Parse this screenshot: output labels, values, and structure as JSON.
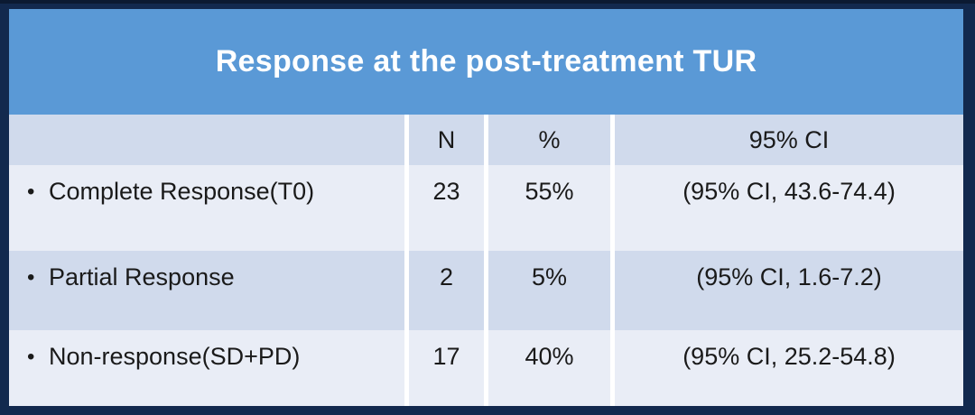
{
  "chart_data": {
    "type": "table",
    "title": "Response at the post-treatment TUR",
    "columns": [
      "",
      "N",
      "%",
      "95% CI"
    ],
    "rows": [
      [
        "Complete Response(T0)",
        "23",
        "55%",
        "(95% CI, 43.6-74.4)"
      ],
      [
        "Partial Response",
        "2",
        "5%",
        "(95% CI, 1.6-7.2)"
      ],
      [
        "Non-response(SD+PD)",
        "17",
        "40%",
        "(95% CI, 25.2-54.8)"
      ]
    ],
    "layout_hints": {
      "row_banding": [
        "light",
        "dark",
        "light"
      ],
      "header_band": "dark",
      "column_dividers": "white vertical lines from header to bottom",
      "label_list_style": "bullet"
    }
  },
  "icons": {
    "bullet": "•"
  },
  "colors": {
    "frame-navy": "#12294E",
    "title-blue": "#5A99D6",
    "band-dark": "#D0DAEC",
    "band-light": "#E9EDF6",
    "divider-white": "#FFFFFF",
    "title-text": "#FFFFFF",
    "body-text": "#1A1A1A"
  }
}
